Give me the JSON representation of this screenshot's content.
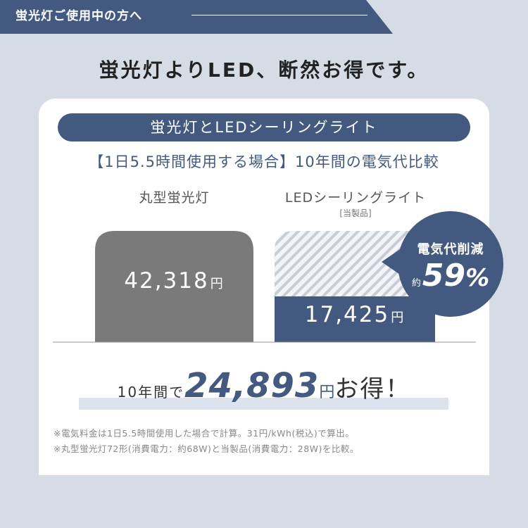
{
  "header": {
    "tag": "蛍光灯ご使用中の方へ",
    "headline": "蛍光灯よりLED、断然お得です。",
    "pill": "蛍光灯とLEDシーリングライト",
    "comparison": "【1日5.5時間使用する場合】10年間の電気代比較"
  },
  "colors": {
    "navy": "#44597f",
    "gray": "#7a7a7a",
    "bg": "#d5dce6"
  },
  "chart_data": {
    "type": "bar",
    "categories": [
      "丸型蛍光灯",
      "LEDシーリングライト"
    ],
    "category_sub": [
      "",
      "[当製品]"
    ],
    "values": [
      42318,
      17425
    ],
    "value_labels": [
      "42,318",
      "17,425"
    ],
    "unit": "円",
    "title": "",
    "xlabel": "",
    "ylabel": "",
    "ylim": [
      0,
      42318
    ],
    "grid": false,
    "legend": "none"
  },
  "badge": {
    "line1": "電気代削減",
    "prefix": "約",
    "percent": "59",
    "suffix": "%"
  },
  "saving": {
    "prefix": "10年間で",
    "amount": "24,893",
    "unit": "円",
    "suffix": "お得！"
  },
  "notes": [
    "※電気料金は1日5.5時間使用した場合で計算。31円/kWh(税込)で算出。",
    "※丸型蛍光灯72形(消費電力：約68W)と当製品(消費電力：28W)を比較。"
  ]
}
